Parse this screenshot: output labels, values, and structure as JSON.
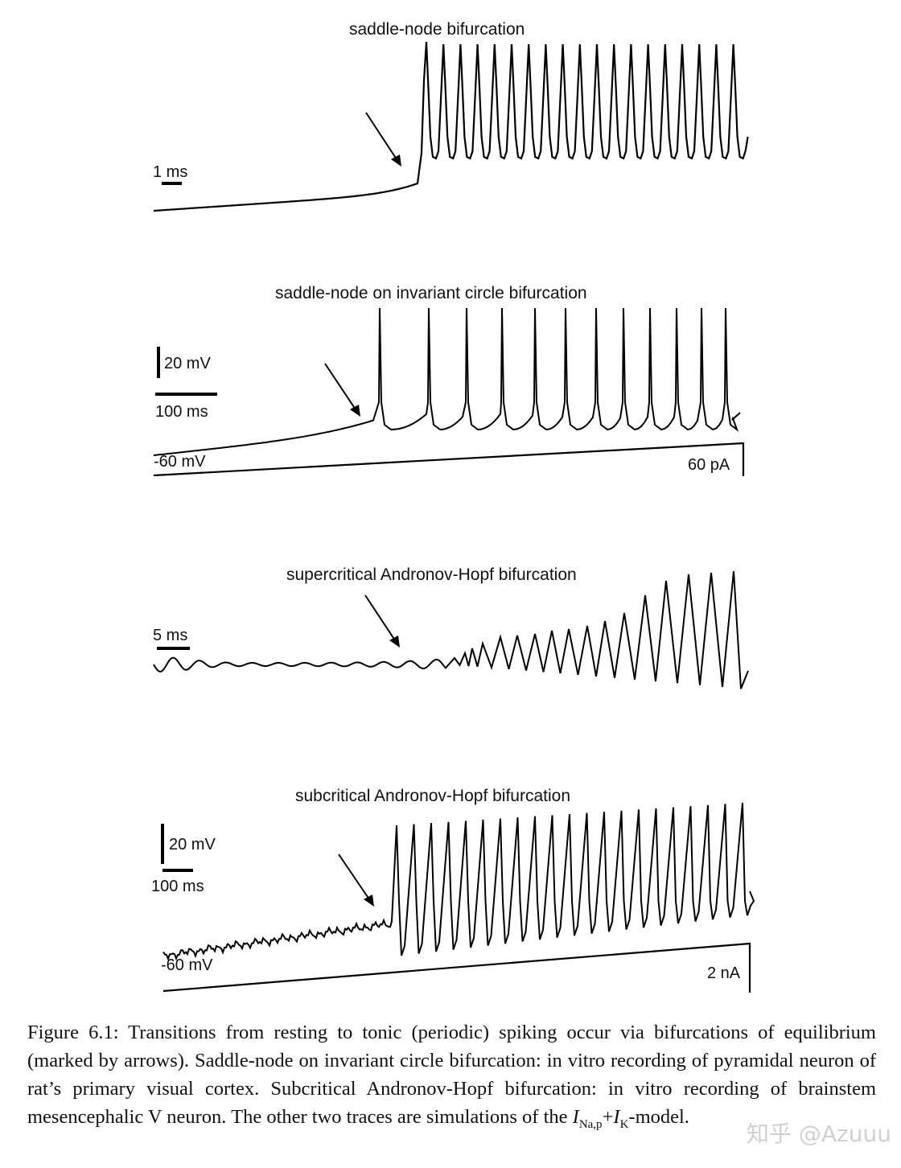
{
  "panels": [
    {
      "title": "saddle-node bifurcation",
      "labels": [
        "1 ms"
      ]
    },
    {
      "title": "saddle-node on invariant circle bifurcation",
      "labels": [
        "20 mV",
        "100 ms",
        "-60 mV",
        "60 pA"
      ]
    },
    {
      "title": "supercritical Andronov-Hopf bifurcation",
      "labels": [
        "5 ms"
      ]
    },
    {
      "title": "subcritical Andronov-Hopf bifurcation",
      "labels": [
        "20 mV",
        "100 ms",
        "-60 mV",
        "2 nA"
      ]
    }
  ],
  "caption": {
    "before_formula": "Figure 6.1: Transitions from resting to tonic (periodic) spiking occur via bifurcations of equilibrium (marked by arrows). Saddle-node on invariant circle bifurcation: in vitro recording of pyramidal neuron of rat’s primary visual cortex. Subcritical Andronov-Hopf bifurcation: in vitro recording of brainstem mesencephalic V neuron. The other two traces are simulations of the ",
    "I1": "I",
    "sub1": "Na,p",
    "plus": "+",
    "I2": "I",
    "sub2": "K",
    "after_formula": "-model."
  },
  "watermark": "知乎 @Azuuu"
}
